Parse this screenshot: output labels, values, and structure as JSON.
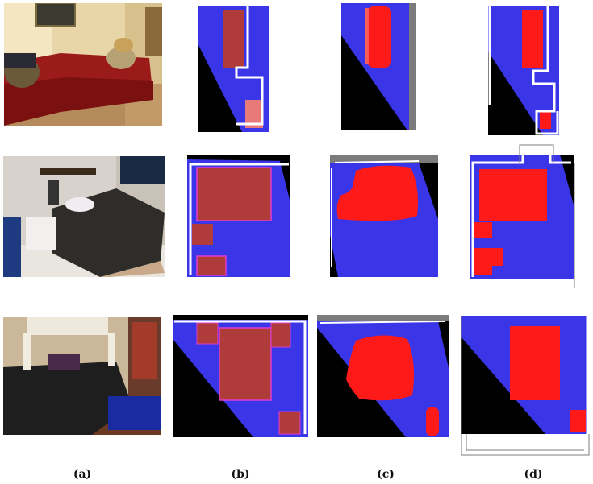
{
  "figure": {
    "captions": [
      "(a)",
      "(b)",
      "(c)",
      "(d)"
    ],
    "rows": [
      {
        "photo": "living-room-red-sofa"
      },
      {
        "photo": "bedroom-bed-and-nightstand"
      },
      {
        "photo": "bedroom-dark-bed-and-bench"
      }
    ],
    "colors": {
      "free_space": "#3a36e8",
      "unknown": "#000000",
      "object_box": "#b03b3b",
      "object_outline": "#e03cd0",
      "predicted_object": "#ff1a1a",
      "room_boundary": "#ffffff",
      "wall_gray": "#7b7b7b"
    }
  }
}
